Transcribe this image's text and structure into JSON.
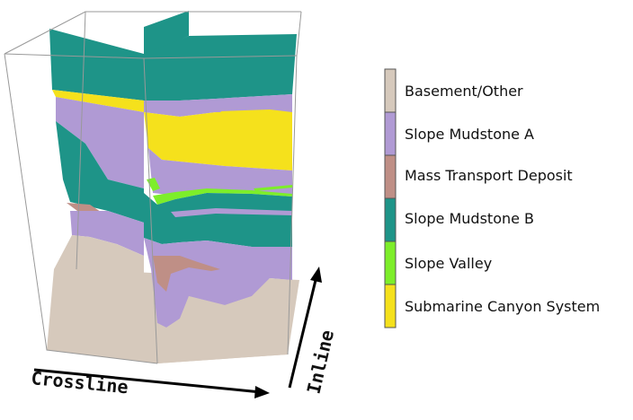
{
  "axes": {
    "crossline_label": "Crossline",
    "inline_label": "Inline"
  },
  "legend": {
    "items": [
      {
        "label": "Basement/Other",
        "color": "#d6c9bc"
      },
      {
        "label": "Slope Mudstone A",
        "color": "#b09ad4"
      },
      {
        "label": "Mass Transport Deposit",
        "color": "#bf8f86"
      },
      {
        "label": "Slope Mudstone B",
        "color": "#1e9488"
      },
      {
        "label": "Slope Valley",
        "color": "#7dee2a"
      },
      {
        "label": "Submarine Canyon System",
        "color": "#f5e11c"
      }
    ]
  }
}
